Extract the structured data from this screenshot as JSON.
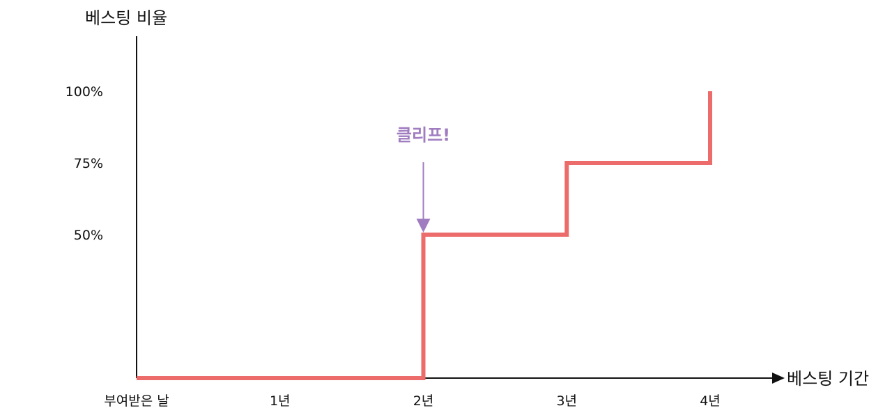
{
  "chart_data": {
    "type": "line",
    "style": "step",
    "title": "",
    "ylabel": "베스팅 비율",
    "xlabel": "베스팅 기간",
    "categories": [
      "부여받은 날",
      "1년",
      "2년",
      "3년",
      "4년"
    ],
    "x": [
      0,
      1,
      2,
      3,
      4
    ],
    "yticks": [
      {
        "value": 50,
        "label": "50%"
      },
      {
        "value": 75,
        "label": "75%"
      },
      {
        "value": 100,
        "label": "100%"
      }
    ],
    "ylim": [
      0,
      120
    ],
    "xlim": [
      0,
      4.6
    ],
    "series": [
      {
        "name": "베스팅 비율",
        "color": "#ec6b6b",
        "points": [
          {
            "x": 0,
            "y": 0
          },
          {
            "x": 2,
            "y": 0
          },
          {
            "x": 2,
            "y": 50
          },
          {
            "x": 3,
            "y": 50
          },
          {
            "x": 3,
            "y": 75
          },
          {
            "x": 4,
            "y": 75
          },
          {
            "x": 4,
            "y": 100
          }
        ]
      }
    ],
    "annotations": [
      {
        "text": "클리프!",
        "x": 2,
        "y": 50,
        "color": "#a07cc0"
      }
    ],
    "grid": false
  }
}
